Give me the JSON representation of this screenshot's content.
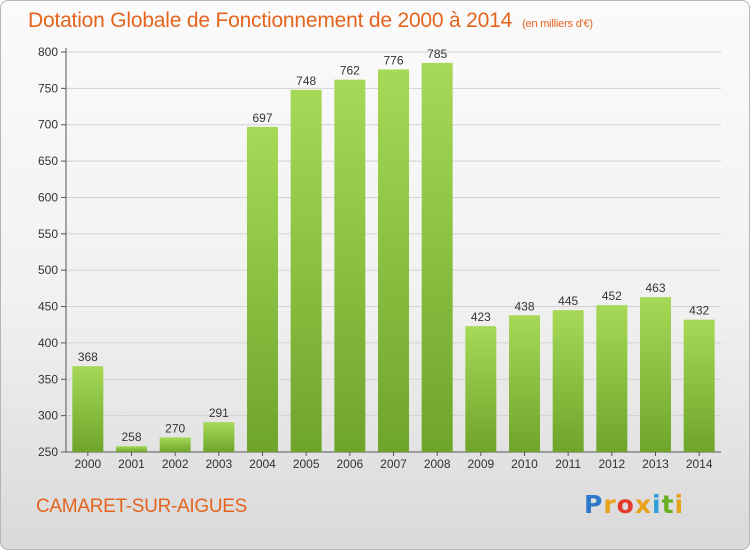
{
  "header": {
    "title": "Dotation Globale de Fonctionnement de 2000 à 2014",
    "unit": "(en milliers d'€)"
  },
  "footer": {
    "commune": "CAMARET-SUR-AIGUES",
    "brand_letters": [
      {
        "ch": "P",
        "color": "#2f78c9"
      },
      {
        "ch": "r",
        "color": "#e8a21c"
      },
      {
        "ch": "o",
        "color": "#e23b2c"
      },
      {
        "ch": "x",
        "color": "#e8a21c"
      },
      {
        "ch": "i",
        "color": "#2f9fd8"
      },
      {
        "ch": "t",
        "color": "#6ab023"
      },
      {
        "ch": "i",
        "color": "#e8a21c"
      }
    ]
  },
  "colors": {
    "bar_light": "#a6d957",
    "bar_dark": "#6ea52a",
    "title": "#e4641e"
  },
  "chart_data": {
    "type": "bar",
    "title": "Dotation Globale de Fonctionnement de 2000 à 2014",
    "subtitle": "(en milliers d'€)",
    "xlabel": "",
    "ylabel": "",
    "categories": [
      "2000",
      "2001",
      "2002",
      "2003",
      "2004",
      "2005",
      "2006",
      "2007",
      "2008",
      "2009",
      "2010",
      "2011",
      "2012",
      "2013",
      "2014"
    ],
    "values": [
      368,
      258,
      270,
      291,
      697,
      748,
      762,
      776,
      785,
      423,
      438,
      445,
      452,
      463,
      432
    ],
    "ylim": [
      250,
      800
    ],
    "yticks": [
      250,
      300,
      350,
      400,
      450,
      500,
      550,
      600,
      650,
      700,
      750,
      800
    ],
    "grid": true,
    "legend": "none"
  }
}
